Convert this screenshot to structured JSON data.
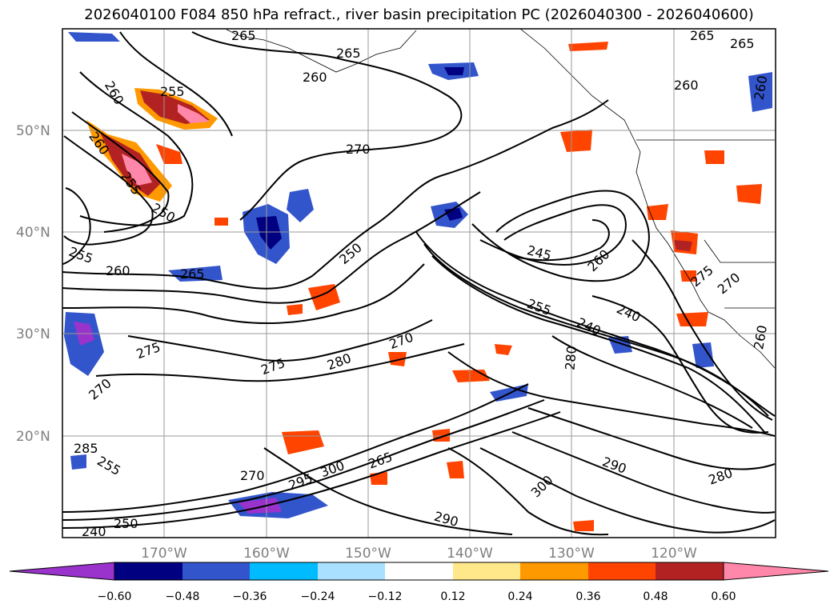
{
  "title": "2026040100 F084 850 hPa refract., river basin precipitation PC (2026040300 - 2026040600)",
  "map": {
    "projection": "cylindrical",
    "lon_range": [
      -180,
      -110
    ],
    "lat_range": [
      10,
      60
    ],
    "lat_ticks": [
      "50°N",
      "40°N",
      "30°N",
      "20°N"
    ],
    "lon_ticks": [
      "170°W",
      "160°W",
      "150°W",
      "140°W",
      "130°W",
      "120°W"
    ],
    "gridlines": true,
    "contour_color": "#000000",
    "contour_labels": [
      "265",
      "265",
      "265",
      "260",
      "255",
      "260",
      "260",
      "265",
      "260",
      "260",
      "255",
      "250",
      "255",
      "260",
      "265",
      "270",
      "250",
      "245",
      "260",
      "255",
      "240",
      "240",
      "275",
      "270",
      "275",
      "275",
      "280",
      "270",
      "280",
      "270",
      "260",
      "285",
      "255",
      "270",
      "265",
      "295",
      "300",
      "290",
      "300",
      "290",
      "250",
      "240",
      "280"
    ]
  },
  "colorbar": {
    "ticks": [
      "−0.60",
      "−0.48",
      "−0.36",
      "−0.24",
      "−0.12",
      "0.12",
      "0.24",
      "0.36",
      "0.48",
      "0.60"
    ],
    "colors": [
      "#9933cc",
      "#000080",
      "#3355cc",
      "#00bbff",
      "#aae0ff",
      "#ffffff",
      "#ffe88a",
      "#ff9900",
      "#ff4400",
      "#b22222",
      "#ff88aa"
    ],
    "extend": "both"
  }
}
